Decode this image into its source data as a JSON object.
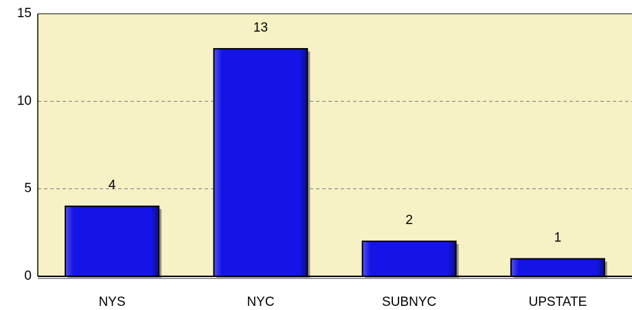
{
  "chart_data": {
    "type": "bar",
    "categories": [
      "NYS",
      "NYC",
      "SUBNYC",
      "UPSTATE"
    ],
    "values": [
      4,
      13,
      2,
      1
    ],
    "color": "#1414e6",
    "ylim": [
      0,
      15
    ],
    "yticks": [
      0,
      5,
      10,
      15
    ],
    "grid": true
  }
}
